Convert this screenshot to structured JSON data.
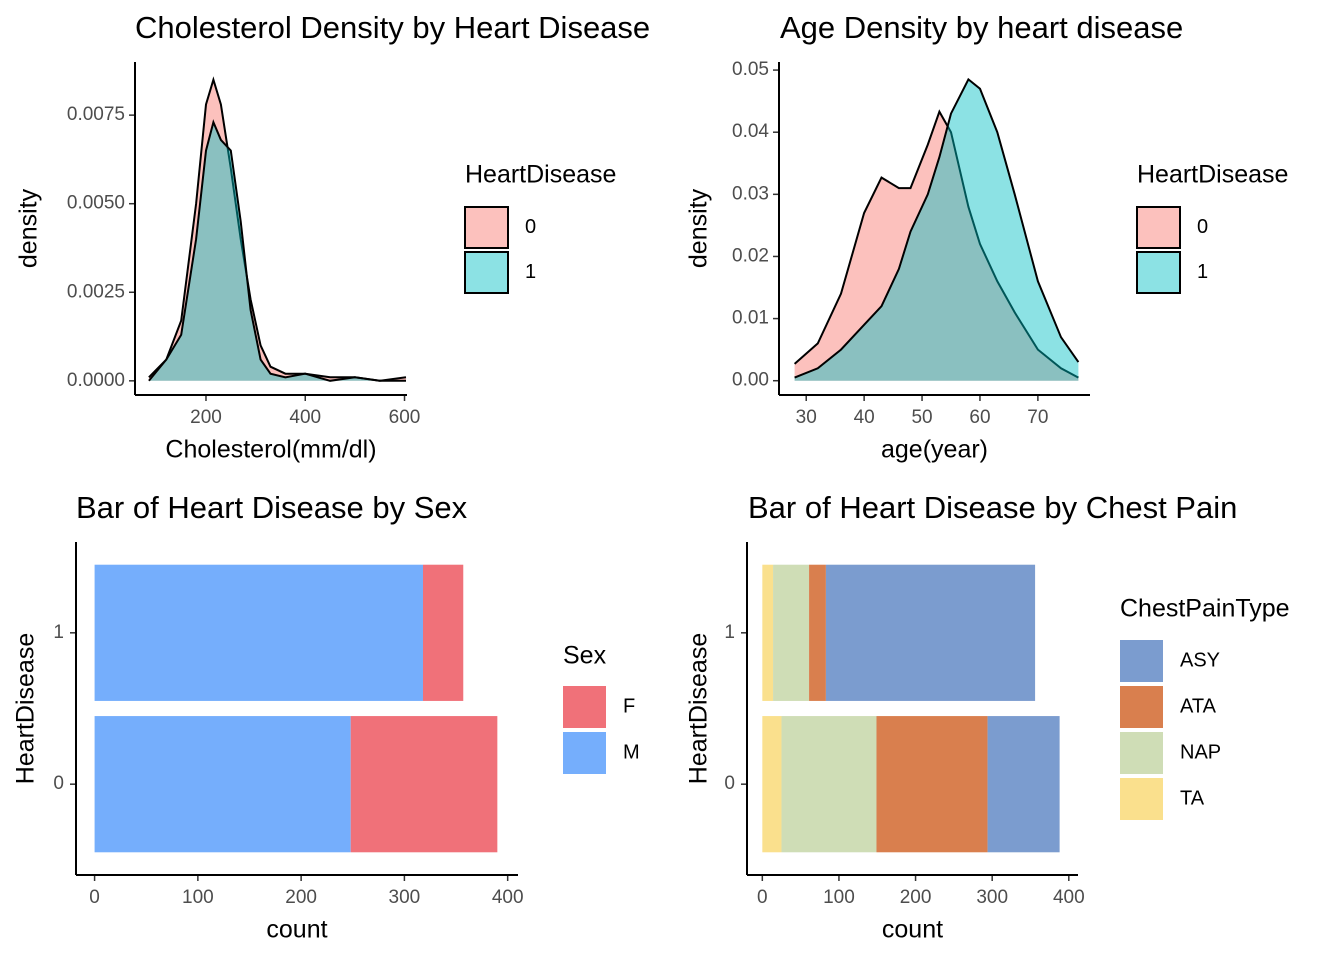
{
  "chart_data": [
    {
      "type": "density",
      "title": "Cholesterol Density by Heart Disease",
      "xlabel": "Cholesterol(mm/dl)",
      "ylabel": "density",
      "x": [
        85,
        120,
        150,
        180,
        200,
        215,
        230,
        250,
        270,
        290,
        310,
        330,
        360,
        400,
        450,
        500,
        550,
        603
      ],
      "series": [
        {
          "name": "0",
          "color": "#F8766D",
          "values": [
            0.0001,
            0.0006,
            0.0017,
            0.005,
            0.0078,
            0.0085,
            0.0078,
            0.006,
            0.004,
            0.0023,
            0.001,
            0.0004,
            0.0002,
            0.0002,
            0.0001,
            0.0001,
            0.0,
            0.0001
          ]
        },
        {
          "name": "1",
          "color": "#00BFC4",
          "values": [
            0.0,
            0.0006,
            0.0013,
            0.004,
            0.0065,
            0.0073,
            0.0068,
            0.0065,
            0.0045,
            0.002,
            0.0006,
            0.0002,
            0.0001,
            0.0002,
            0.0,
            0.0001,
            0.0,
            0.0
          ]
        }
      ],
      "xlim": [
        57,
        605
      ],
      "ylim": [
        -0.0004,
        0.009
      ],
      "xticks": [
        200,
        400,
        600
      ],
      "yticks": [
        {
          "value": 0,
          "label": "0.0000"
        },
        0.0025,
        {
          "value": 0.005,
          "label": "0.0050"
        },
        {
          "value": 0.0075,
          "label": "0.0075"
        }
      ],
      "legend": "right",
      "legend_title": "HeartDisease"
    },
    {
      "type": "density",
      "title": "Age Density by heart disease",
      "xlabel": "age(year)",
      "ylabel": "density",
      "x": [
        28,
        32,
        36,
        40,
        43,
        46,
        48,
        51,
        53,
        55,
        58,
        60,
        63,
        66,
        70,
        74,
        77
      ],
      "series": [
        {
          "name": "0",
          "color": "#F8766D",
          "values": [
            0.0027,
            0.006,
            0.014,
            0.027,
            0.0327,
            0.031,
            0.031,
            0.038,
            0.0433,
            0.04,
            0.028,
            0.022,
            0.016,
            0.011,
            0.005,
            0.002,
            0.0005
          ]
        },
        {
          "name": "1",
          "color": "#00BFC4",
          "values": [
            0.0005,
            0.002,
            0.005,
            0.009,
            0.012,
            0.018,
            0.024,
            0.03,
            0.036,
            0.043,
            0.0485,
            0.047,
            0.04,
            0.03,
            0.016,
            0.007,
            0.003
          ]
        }
      ],
      "xlim": [
        25.3,
        79
      ],
      "ylim": [
        -0.0023,
        0.0513
      ],
      "xticks": [
        30,
        40,
        50,
        60,
        70
      ],
      "yticks": [
        {
          "value": 0,
          "label": "0.00"
        },
        0.01,
        0.02,
        0.03,
        0.04,
        0.05
      ],
      "legend": "right",
      "legend_title": "HeartDisease"
    },
    {
      "type": "bar",
      "orientation": "horizontal",
      "stacked": true,
      "title": "Bar of Heart Disease by Sex",
      "xlabel": "count",
      "ylabel": "HeartDisease",
      "categories": [
        "0",
        "1"
      ],
      "series": [
        {
          "name": "F",
          "color": "#F07179",
          "values": [
            142,
            39
          ]
        },
        {
          "name": "M",
          "color": "#75AEFC",
          "values": [
            248,
            318
          ]
        }
      ],
      "xlim": [
        -18,
        410
      ],
      "xticks": [
        0,
        100,
        200,
        300,
        400
      ],
      "legend": "right",
      "legend_title": "Sex"
    },
    {
      "type": "bar",
      "orientation": "horizontal",
      "stacked": true,
      "title": "Bar of Heart Disease by Chest Pain",
      "xlabel": "count",
      "ylabel": "HeartDisease",
      "categories": [
        "0",
        "1"
      ],
      "series": [
        {
          "name": "ASY",
          "color": "#7B9CCF",
          "values": [
            94,
            273
          ]
        },
        {
          "name": "ATA",
          "color": "#D97F4E",
          "values": [
            145,
            22
          ]
        },
        {
          "name": "NAP",
          "color": "#CFDDB6",
          "values": [
            124,
            47
          ]
        },
        {
          "name": "TA",
          "color": "#FAE08D",
          "values": [
            25,
            14
          ]
        }
      ],
      "xlim": [
        -20,
        412
      ],
      "xticks": [
        0,
        100,
        200,
        300,
        400
      ],
      "legend": "right",
      "legend_title": "ChestPainType"
    }
  ]
}
